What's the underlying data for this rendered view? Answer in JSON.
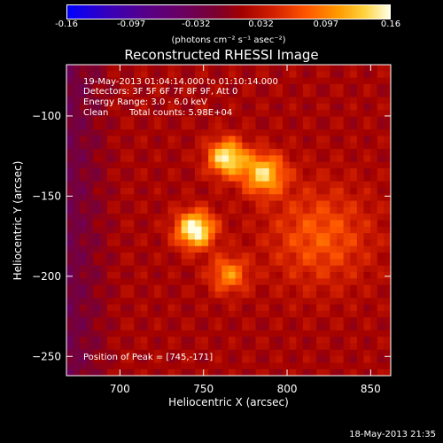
{
  "colorbar": {
    "ticks": [
      "-0.16",
      "-0.097",
      "-0.032",
      "0.032",
      "0.097",
      "0.16"
    ],
    "units": "(photons cm⁻² s⁻¹ asec⁻²)"
  },
  "chart_data": {
    "type": "heatmap",
    "title": "Reconstructed RHESSI Image",
    "xlabel": "Heliocentric X (arcsec)",
    "ylabel": "Heliocentric Y (arcsec)",
    "xlim": [
      668,
      862
    ],
    "ylim": [
      -262,
      -68
    ],
    "xticks": [
      700,
      750,
      800,
      850
    ],
    "yticks": [
      -100,
      -150,
      -200,
      -250
    ],
    "color_range": [
      -0.16,
      0.16
    ],
    "sources": [
      {
        "x": 745,
        "y": -171,
        "peak": 0.16,
        "sigma": 8
      },
      {
        "x": 764,
        "y": -126,
        "peak": 0.14,
        "sigma": 8
      },
      {
        "x": 786,
        "y": -136,
        "peak": 0.12,
        "sigma": 9
      },
      {
        "x": 765,
        "y": -199,
        "peak": 0.085,
        "sigma": 8
      },
      {
        "x": 820,
        "y": -175,
        "peak": 0.06,
        "sigma": 22
      }
    ]
  },
  "annotations": {
    "time_range": "19-May-2013 01:04:14.000 to 01:10:14.000",
    "detectors": "Detectors: 3F 5F 6F 7F 8F 9F, Att 0",
    "energy": "Energy Range: 3.0 - 6.0 keV",
    "clean": "Clean",
    "total_counts": "Total counts: 5.98E+04",
    "peak": "Position of Peak = [745,-171]"
  },
  "timestamp": "18-May-2013 21:35"
}
